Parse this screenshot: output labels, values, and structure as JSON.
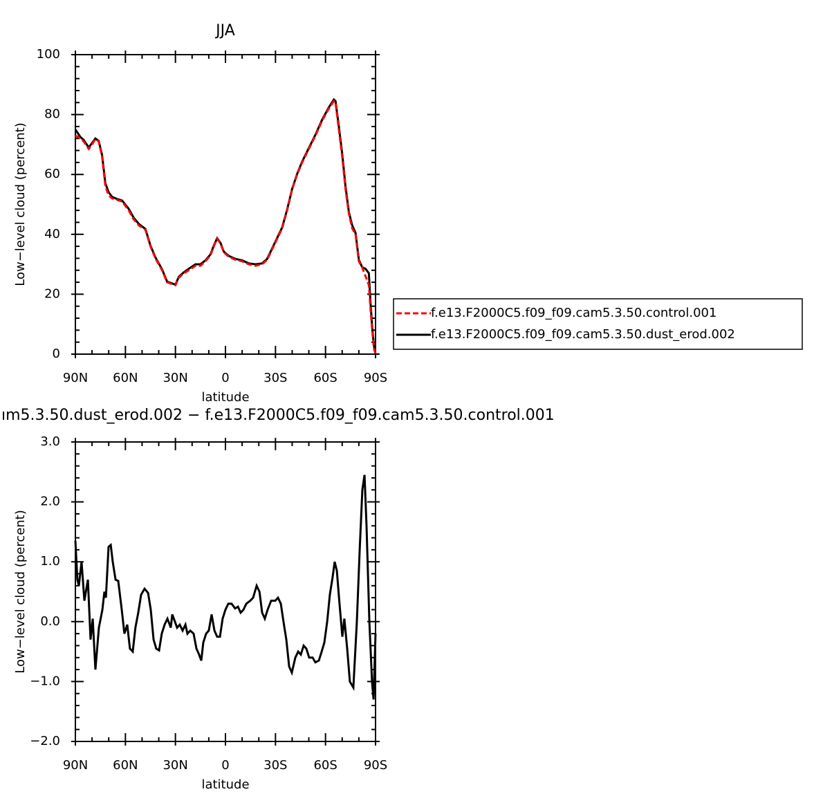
{
  "chart_data": [
    {
      "type": "line",
      "title": "JJA",
      "xlabel": "latitude",
      "ylabel": "Low−level cloud (percent)",
      "x": [
        90,
        87,
        85,
        82,
        80,
        78,
        76,
        74,
        72,
        70,
        68,
        65,
        62,
        58,
        55,
        52,
        48,
        45,
        42,
        38,
        35,
        30,
        28,
        25,
        22,
        18,
        15,
        12,
        9,
        7,
        5,
        3,
        1,
        -2,
        -6,
        -10,
        -14,
        -18,
        -22,
        -25,
        -28,
        -31,
        -34,
        -37,
        -40,
        -43,
        -46,
        -50,
        -54,
        -58,
        -62,
        -65,
        -66,
        -68,
        -70,
        -72,
        -74,
        -76,
        -78,
        -80,
        -82,
        -84,
        -86,
        -87,
        -88,
        -89,
        -90
      ],
      "series": [
        {
          "name": "f.e13.F2000C5.f09_f09.cam5.3.50.control.001",
          "color": "#ff0000",
          "dash": true,
          "values": [
            73,
            72,
            71,
            68.5,
            70,
            71.8,
            71,
            66,
            56,
            53,
            52,
            51.5,
            51,
            48,
            45,
            43,
            41.5,
            36,
            32,
            28,
            24,
            23,
            25.5,
            27,
            28,
            29.5,
            29.5,
            31,
            33,
            36,
            38.5,
            37,
            34,
            32.5,
            31.5,
            31,
            30,
            29.5,
            30,
            31.5,
            35,
            38.5,
            42,
            48,
            55,
            60,
            64,
            68.5,
            73,
            78,
            82,
            84.5,
            84,
            75,
            66,
            55,
            47,
            42,
            40,
            31,
            29,
            26,
            23,
            15,
            8,
            2,
            0
          ]
        },
        {
          "name": "f.e13.F2000C5.f09_f09.cam5.3.50.dust_erod.002",
          "color": "#000000",
          "dash": false,
          "values": [
            75,
            72.5,
            71.5,
            69,
            70.5,
            72,
            71.2,
            66.5,
            57,
            54,
            52.5,
            51.8,
            51.3,
            48.5,
            45.5,
            43.5,
            41.8,
            36.3,
            32.3,
            28.3,
            24.2,
            23.2,
            25.8,
            27.3,
            28.5,
            30,
            30,
            31.3,
            33.3,
            36.2,
            38.7,
            37.2,
            34.2,
            32.8,
            31.8,
            31.3,
            30.3,
            30,
            30.3,
            31.8,
            35.3,
            38.8,
            42.3,
            48.3,
            55.2,
            60.2,
            64.3,
            68.8,
            73.3,
            78.3,
            82.4,
            85,
            84.5,
            76,
            67,
            56,
            47.5,
            43,
            40.5,
            31.5,
            29,
            28.5,
            27,
            17,
            9,
            3,
            0
          ]
        }
      ],
      "xlim": [
        90,
        -90
      ],
      "xticks": [
        {
          "value": 90,
          "label": "90N"
        },
        {
          "value": 60,
          "label": "60N"
        },
        {
          "value": 30,
          "label": "30N"
        },
        0,
        {
          "value": -30,
          "label": "30S"
        },
        {
          "value": -60,
          "label": "60S"
        },
        {
          "value": -90,
          "label": "90S"
        }
      ],
      "ylim": [
        0,
        100
      ],
      "yticks": [
        0,
        20,
        40,
        60,
        80,
        100
      ],
      "legend": "right"
    },
    {
      "type": "line",
      "title": "ım5.3.50.dust_erod.002 − f.e13.F2000C5.f09_f09.cam5.3.50.control.001",
      "xlabel": "latitude",
      "ylabel": "Low−level cloud (percent)",
      "x": [
        90,
        88.8,
        87.9,
        86.3,
        84.6,
        82.5,
        80.9,
        79.6,
        78,
        75.9,
        73.8,
        72.6,
        71.7,
        70.1,
        68.8,
        67.6,
        65.9,
        64.3,
        62.2,
        60.6,
        58.9,
        57.3,
        55.6,
        54,
        52.3,
        50.6,
        48.5,
        46.4,
        44.8,
        43.1,
        41.5,
        39.8,
        38.2,
        36.5,
        34.8,
        32.8,
        31.9,
        30.7,
        29,
        27.4,
        25.7,
        24,
        22.8,
        21.1,
        19.1,
        17.4,
        15.8,
        14.5,
        13.3,
        11.6,
        10,
        8.3,
        6.6,
        5,
        3.3,
        1.7,
        0,
        -1.7,
        -3.7,
        -5.8,
        -7.5,
        -9.1,
        -10.8,
        -12.5,
        -14.9,
        -16.6,
        -18.7,
        -20.4,
        -22,
        -23.6,
        -25.3,
        -27.4,
        -29.9,
        -31.5,
        -33.2,
        -34.8,
        -36.5,
        -38.2,
        -39.8,
        -41.9,
        -43.6,
        -45.2,
        -46.9,
        -48.5,
        -50.2,
        -52.3,
        -53.9,
        -56,
        -57.7,
        -59.3,
        -61,
        -62.6,
        -64.3,
        -65.5,
        -66.8,
        -68.4,
        -70.1,
        -71.3,
        -73,
        -74.6,
        -76.7,
        -78.8,
        -80.5,
        -82.1,
        -83.4,
        -84.6,
        -86.3,
        -87.9,
        -88.8,
        -90
      ],
      "series": [
        {
          "color": "#000000",
          "dash": false,
          "values": [
            1.35,
            0.7,
            0.6,
            1.0,
            0.35,
            0.7,
            -0.3,
            0.05,
            -0.8,
            -0.1,
            0.2,
            0.5,
            0.4,
            1.25,
            1.28,
            1.0,
            0.7,
            0.68,
            0.2,
            -0.2,
            -0.05,
            -0.45,
            -0.5,
            -0.1,
            0.15,
            0.45,
            0.55,
            0.48,
            0.2,
            -0.3,
            -0.45,
            -0.48,
            -0.2,
            -0.05,
            0.05,
            -0.1,
            0.12,
            0.03,
            -0.1,
            -0.05,
            -0.15,
            -0.05,
            -0.2,
            -0.15,
            -0.2,
            -0.45,
            -0.55,
            -0.65,
            -0.35,
            -0.2,
            -0.15,
            0.12,
            -0.15,
            -0.25,
            -0.25,
            0.05,
            0.2,
            0.3,
            0.3,
            0.22,
            0.25,
            0.15,
            0.2,
            0.3,
            0.35,
            0.4,
            0.6,
            0.5,
            0.15,
            0.05,
            0.2,
            0.35,
            0.35,
            0.4,
            0.3,
            0,
            -0.3,
            -0.75,
            -0.85,
            -0.6,
            -0.5,
            -0.55,
            -0.4,
            -0.45,
            -0.6,
            -0.6,
            -0.68,
            -0.65,
            -0.5,
            -0.35,
            0,
            0.45,
            0.75,
            1.0,
            0.85,
            0.3,
            -0.25,
            0.05,
            -0.45,
            -1.0,
            -1.1,
            0,
            1.2,
            2.2,
            2.45,
            1.6,
            0,
            -1.0,
            -1.3,
            -0.2
          ]
        }
      ],
      "xlim": [
        90,
        -90
      ],
      "xticks": [
        {
          "value": 90,
          "label": "90N"
        },
        {
          "value": 60,
          "label": "60N"
        },
        {
          "value": 30,
          "label": "30N"
        },
        0,
        {
          "value": -30,
          "label": "30S"
        },
        {
          "value": -60,
          "label": "60S"
        },
        {
          "value": -90,
          "label": "90S"
        }
      ],
      "ylim": [
        -2,
        3
      ],
      "yticks": [
        {
          "value": -2,
          "label": "−2.0"
        },
        {
          "value": -1,
          "label": "−1.0"
        },
        {
          "value": 0,
          "label": "0.0"
        },
        {
          "value": 1,
          "label": "1.0"
        },
        {
          "value": 2,
          "label": "2.0"
        },
        {
          "value": 3,
          "label": "3.0"
        }
      ]
    }
  ]
}
